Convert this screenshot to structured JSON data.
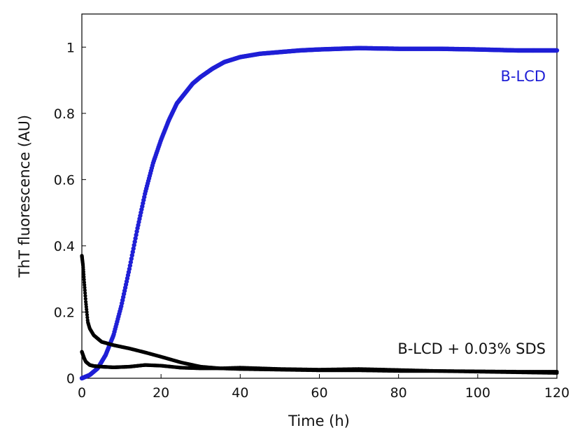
{
  "chart_data": {
    "type": "scatter",
    "title": "",
    "xlabel": "Time (h)",
    "ylabel": "ThT fluorescence (AU)",
    "xlim": [
      0,
      120
    ],
    "ylim": [
      0,
      1.1
    ],
    "xticks": [
      0,
      20,
      40,
      60,
      80,
      100,
      120
    ],
    "yticks": [
      0,
      0.2,
      0.4,
      0.6,
      0.8,
      1
    ],
    "ytick_labels": [
      "0",
      "0.2",
      "0.4",
      "0.6",
      "0.8",
      "1"
    ],
    "grid": false,
    "series": [
      {
        "name": "B-LCD",
        "color": "#1f1fd6",
        "x": [
          0,
          2,
          4,
          6,
          8,
          10,
          12,
          14,
          16,
          18,
          20,
          22,
          24,
          26,
          28,
          30,
          33,
          36,
          40,
          45,
          50,
          55,
          60,
          65,
          70,
          80,
          90,
          100,
          110,
          120
        ],
        "y": [
          0.0,
          0.01,
          0.03,
          0.07,
          0.13,
          0.22,
          0.33,
          0.45,
          0.56,
          0.65,
          0.72,
          0.78,
          0.83,
          0.86,
          0.89,
          0.91,
          0.935,
          0.955,
          0.97,
          0.98,
          0.985,
          0.99,
          0.993,
          0.995,
          0.997,
          0.995,
          0.995,
          0.993,
          0.99,
          0.99
        ]
      },
      {
        "name": "B-LCD + 0.03% SDS",
        "color": "#000000",
        "x": [
          0,
          0.3,
          0.6,
          1,
          1.5,
          2,
          3,
          5,
          8,
          12,
          16,
          20,
          25,
          30,
          35,
          40,
          50,
          60,
          70,
          80,
          90,
          100,
          110,
          120
        ],
        "y": [
          0.37,
          0.34,
          0.29,
          0.23,
          0.17,
          0.15,
          0.13,
          0.11,
          0.1,
          0.09,
          0.078,
          0.065,
          0.048,
          0.035,
          0.03,
          0.028,
          0.026,
          0.024,
          0.024,
          0.022,
          0.022,
          0.021,
          0.02,
          0.02
        ]
      },
      {
        "name": "B-LCD + 0.03% SDS",
        "color": "#000000",
        "x": [
          0,
          0.3,
          0.6,
          1,
          1.5,
          2,
          3,
          5,
          8,
          12,
          16,
          20,
          25,
          30,
          35,
          40,
          50,
          60,
          70,
          80,
          90,
          100,
          110,
          120
        ],
        "y": [
          0.08,
          0.07,
          0.06,
          0.05,
          0.045,
          0.04,
          0.037,
          0.035,
          0.033,
          0.035,
          0.04,
          0.038,
          0.032,
          0.03,
          0.03,
          0.032,
          0.028,
          0.026,
          0.028,
          0.025,
          0.022,
          0.02,
          0.018,
          0.016
        ]
      }
    ],
    "annotations": [
      {
        "text": "B-LCD",
        "color": "#1f1fd6"
      },
      {
        "text": "B-LCD + 0.03% SDS",
        "color": "#111111"
      }
    ]
  }
}
